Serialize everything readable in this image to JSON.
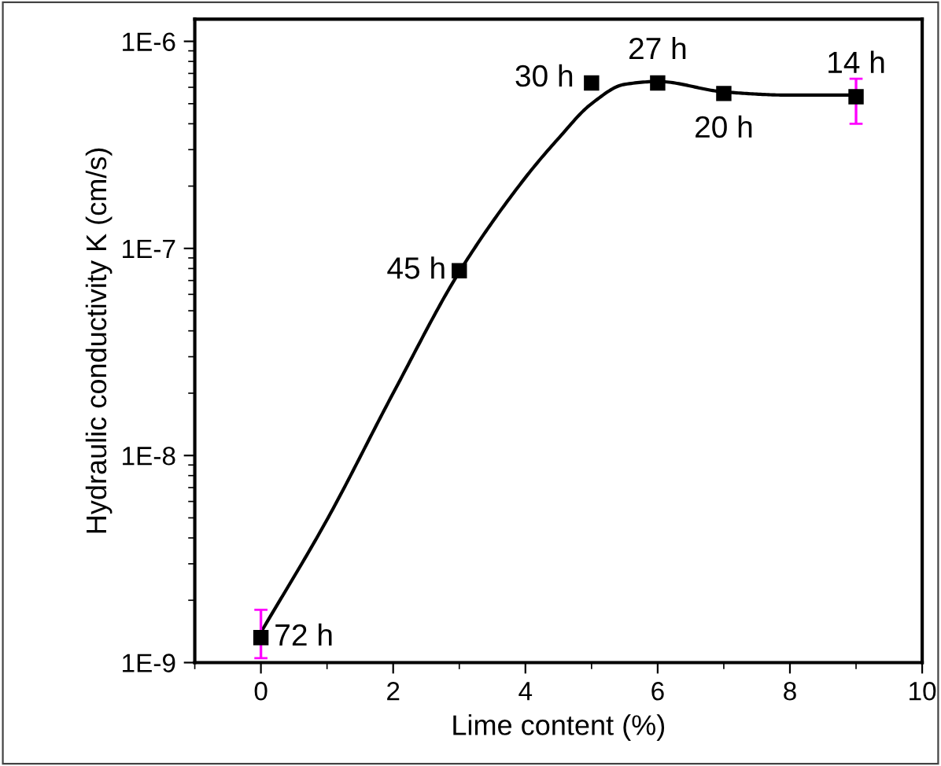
{
  "chart_data": {
    "type": "scatter",
    "xlabel": "Lime content (%)",
    "ylabel": "Hydraulic conductivity K (cm/s)",
    "log": "y",
    "marker": "square",
    "grid": false,
    "xlim": [
      -1,
      10
    ],
    "xticks": [
      0,
      2,
      4,
      6,
      8,
      10
    ],
    "ylim": [
      1e-09,
      1.28e-06
    ],
    "yticks": [
      {
        "value": 1e-09,
        "label": "1E-9"
      },
      {
        "value": 1e-08,
        "label": "1E-8"
      },
      {
        "value": 1e-07,
        "label": "1E-7"
      },
      {
        "value": 1e-06,
        "label": "1E-6"
      }
    ],
    "series": [
      {
        "type": "line",
        "marker": "none",
        "color": "#000000",
        "x": [
          0,
          1,
          2,
          3,
          4,
          4.5,
          5,
          5.5,
          6,
          7,
          8,
          9
        ],
        "values": [
          1.4e-09,
          4.9e-09,
          2e-08,
          7.7e-08,
          2.2e-07,
          3.4e-07,
          5e-07,
          6.2e-07,
          6.4e-07,
          5.7e-07,
          5.5e-07,
          5.5e-07
        ]
      },
      {
        "color": "#000000",
        "x": [
          0,
          3,
          5,
          6,
          7,
          9
        ],
        "values": [
          1.32e-09,
          7.8e-08,
          6.3e-07,
          6.3e-07,
          5.6e-07,
          5.4e-07
        ],
        "errors": [
          [
            1.05e-09,
            1.8e-09
          ],
          null,
          null,
          null,
          null,
          [
            4e-07,
            6.6e-07
          ]
        ]
      }
    ],
    "annotations": [
      {
        "text": "72 h",
        "x": 0,
        "y": 1.32e-09
      },
      {
        "text": "45 h",
        "x": 3,
        "y": 7.8e-08
      },
      {
        "text": "30 h",
        "x": 5,
        "y": 6.3e-07
      },
      {
        "text": "27 h",
        "x": 6,
        "y": 6.3e-07
      },
      {
        "text": "20 h",
        "x": 7,
        "y": 5.6e-07
      },
      {
        "text": "14 h",
        "x": 9,
        "y": 5.4e-07
      }
    ]
  }
}
